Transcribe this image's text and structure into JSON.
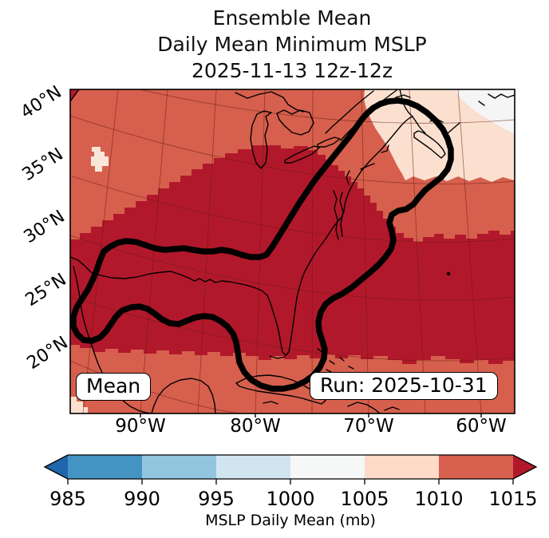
{
  "title": {
    "line1": "Ensemble Mean",
    "line2": "Daily Mean Minimum MSLP",
    "line3": "2025-11-13 12z-12z"
  },
  "map": {
    "mean_label": "Mean",
    "run_label": "Run: 2025-10-31"
  },
  "axes": {
    "lat_labels": [
      "40°N",
      "35°N",
      "30°N",
      "25°N",
      "20°N"
    ],
    "lon_labels": [
      "90°W",
      "80°W",
      "70°W",
      "60°W"
    ]
  },
  "colorbar": {
    "label": "MSLP Daily Mean (mb)",
    "tick_labels": [
      "985",
      "990",
      "995",
      "1000",
      "1005",
      "1010",
      "1015"
    ],
    "segment_colors": [
      "#4393c3",
      "#92c5de",
      "#d1e5f0",
      "#f6f7f7",
      "#fddbc7",
      "#d6604d"
    ],
    "under_color": "#2166ac",
    "over_color": "#b2182b",
    "outline_color": "#000000"
  },
  "palette": {
    "salmon": "#d6604d",
    "dark_red": "#b2182b",
    "peach": "#fbe0cf",
    "off_white": "#f5f5f5",
    "pale_blob": "#f8e7d9",
    "coast": "#000000",
    "graticule": "#6b1a12",
    "contour": "#000000",
    "frame": "#000000"
  },
  "chart_data": {
    "type": "filled-contour-map",
    "title": "Ensemble Mean Daily Mean Minimum MSLP 2025-11-13 12z-12z",
    "statistic": "Mean",
    "run": "2025-10-31",
    "variable": "MSLP Daily Mean (mb)",
    "levels_mb": [
      985,
      990,
      995,
      1000,
      1005,
      1010,
      1015
    ],
    "colormap": "RdBu_r discrete, extended with under/over arrows",
    "lat_ticks": [
      "40°N",
      "35°N",
      "30°N",
      "25°N",
      "20°N"
    ],
    "lon_ticks": [
      "90°W",
      "80°W",
      "70°W",
      "60°W"
    ],
    "field_regions": [
      {
        "range_mb": "> 1015",
        "color": "#b2182b",
        "area": "large central region: Gulf of Mexico, southeastern US, western Atlantic"
      },
      {
        "range_mb": "1010-1015",
        "color": "#d6604d",
        "area": "northwest interior, far south strip, band along northeast"
      },
      {
        "range_mb": "1005-1010",
        "color": "#fddbc7",
        "area": "northeast band over Nova Scotia / Gulf of St Lawrence; small patch in upper-left"
      },
      {
        "range_mb": "1000-1005",
        "color": "#f7f7f7",
        "area": "top-right corner"
      }
    ],
    "annotation_contour": "thick black closed contour enclosing Gulf Coast, Florida/Cuba lobe, US East Coast and Nova Scotia loop"
  }
}
